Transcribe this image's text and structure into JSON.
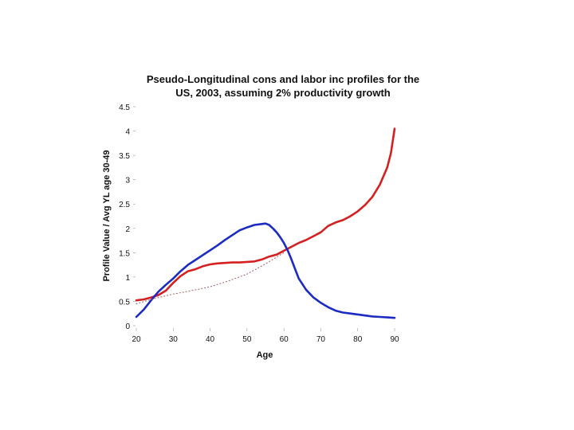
{
  "chart_data": {
    "type": "line",
    "title_lines": [
      "Pseudo-Longitudinal cons and labor inc profiles for the",
      "US, 2003, assuming 2% productivity growth"
    ],
    "xlabel": "Age",
    "ylabel": "Profile Value / Avg YL age 30-49",
    "xlim": [
      20,
      90
    ],
    "ylim": [
      0,
      4.5
    ],
    "x_ticks": [
      "20",
      "30",
      "40",
      "50",
      "60",
      "70",
      "80",
      "90"
    ],
    "y_ticks": [
      "0",
      "0.5",
      "1",
      "1.5",
      "2",
      "2.5",
      "3",
      "3.5",
      "4",
      "4.5"
    ],
    "grid": false,
    "series": [
      {
        "color": "#d42020",
        "style": "solid",
        "x": [
          20,
          22,
          24,
          26,
          28,
          30,
          32,
          34,
          36,
          38,
          40,
          42,
          44,
          46,
          48,
          50,
          52,
          54,
          56,
          58,
          60,
          62,
          64,
          66,
          68,
          70,
          72,
          74,
          76,
          78,
          80,
          82,
          84,
          86,
          88,
          89,
          90
        ],
        "values": [
          0.52,
          0.54,
          0.58,
          0.63,
          0.72,
          0.88,
          1.02,
          1.12,
          1.16,
          1.22,
          1.26,
          1.28,
          1.29,
          1.3,
          1.3,
          1.31,
          1.32,
          1.36,
          1.42,
          1.46,
          1.54,
          1.62,
          1.7,
          1.76,
          1.84,
          1.92,
          2.05,
          2.12,
          2.17,
          2.25,
          2.35,
          2.48,
          2.65,
          2.9,
          3.25,
          3.55,
          4.05
        ]
      },
      {
        "color": "#1c2bc2",
        "style": "solid",
        "x": [
          20,
          22,
          24,
          26,
          28,
          30,
          32,
          34,
          36,
          38,
          40,
          42,
          44,
          46,
          48,
          50,
          52,
          54,
          55,
          56,
          57,
          58,
          59,
          60,
          61,
          62,
          63,
          64,
          66,
          68,
          70,
          72,
          74,
          76,
          78,
          80,
          82,
          84,
          86,
          88,
          90
        ],
        "values": [
          0.18,
          0.33,
          0.52,
          0.7,
          0.84,
          0.97,
          1.12,
          1.25,
          1.35,
          1.45,
          1.55,
          1.65,
          1.76,
          1.86,
          1.96,
          2.02,
          2.07,
          2.09,
          2.1,
          2.07,
          2.0,
          1.92,
          1.82,
          1.7,
          1.55,
          1.37,
          1.17,
          0.97,
          0.74,
          0.58,
          0.47,
          0.38,
          0.31,
          0.27,
          0.25,
          0.23,
          0.21,
          0.19,
          0.18,
          0.17,
          0.16
        ]
      },
      {
        "color": "#a05050",
        "style": "dotted",
        "x": [
          20,
          25,
          30,
          35,
          40,
          45,
          50,
          55,
          60
        ],
        "values": [
          0.45,
          0.56,
          0.65,
          0.72,
          0.8,
          0.92,
          1.06,
          1.27,
          1.5
        ]
      }
    ]
  }
}
